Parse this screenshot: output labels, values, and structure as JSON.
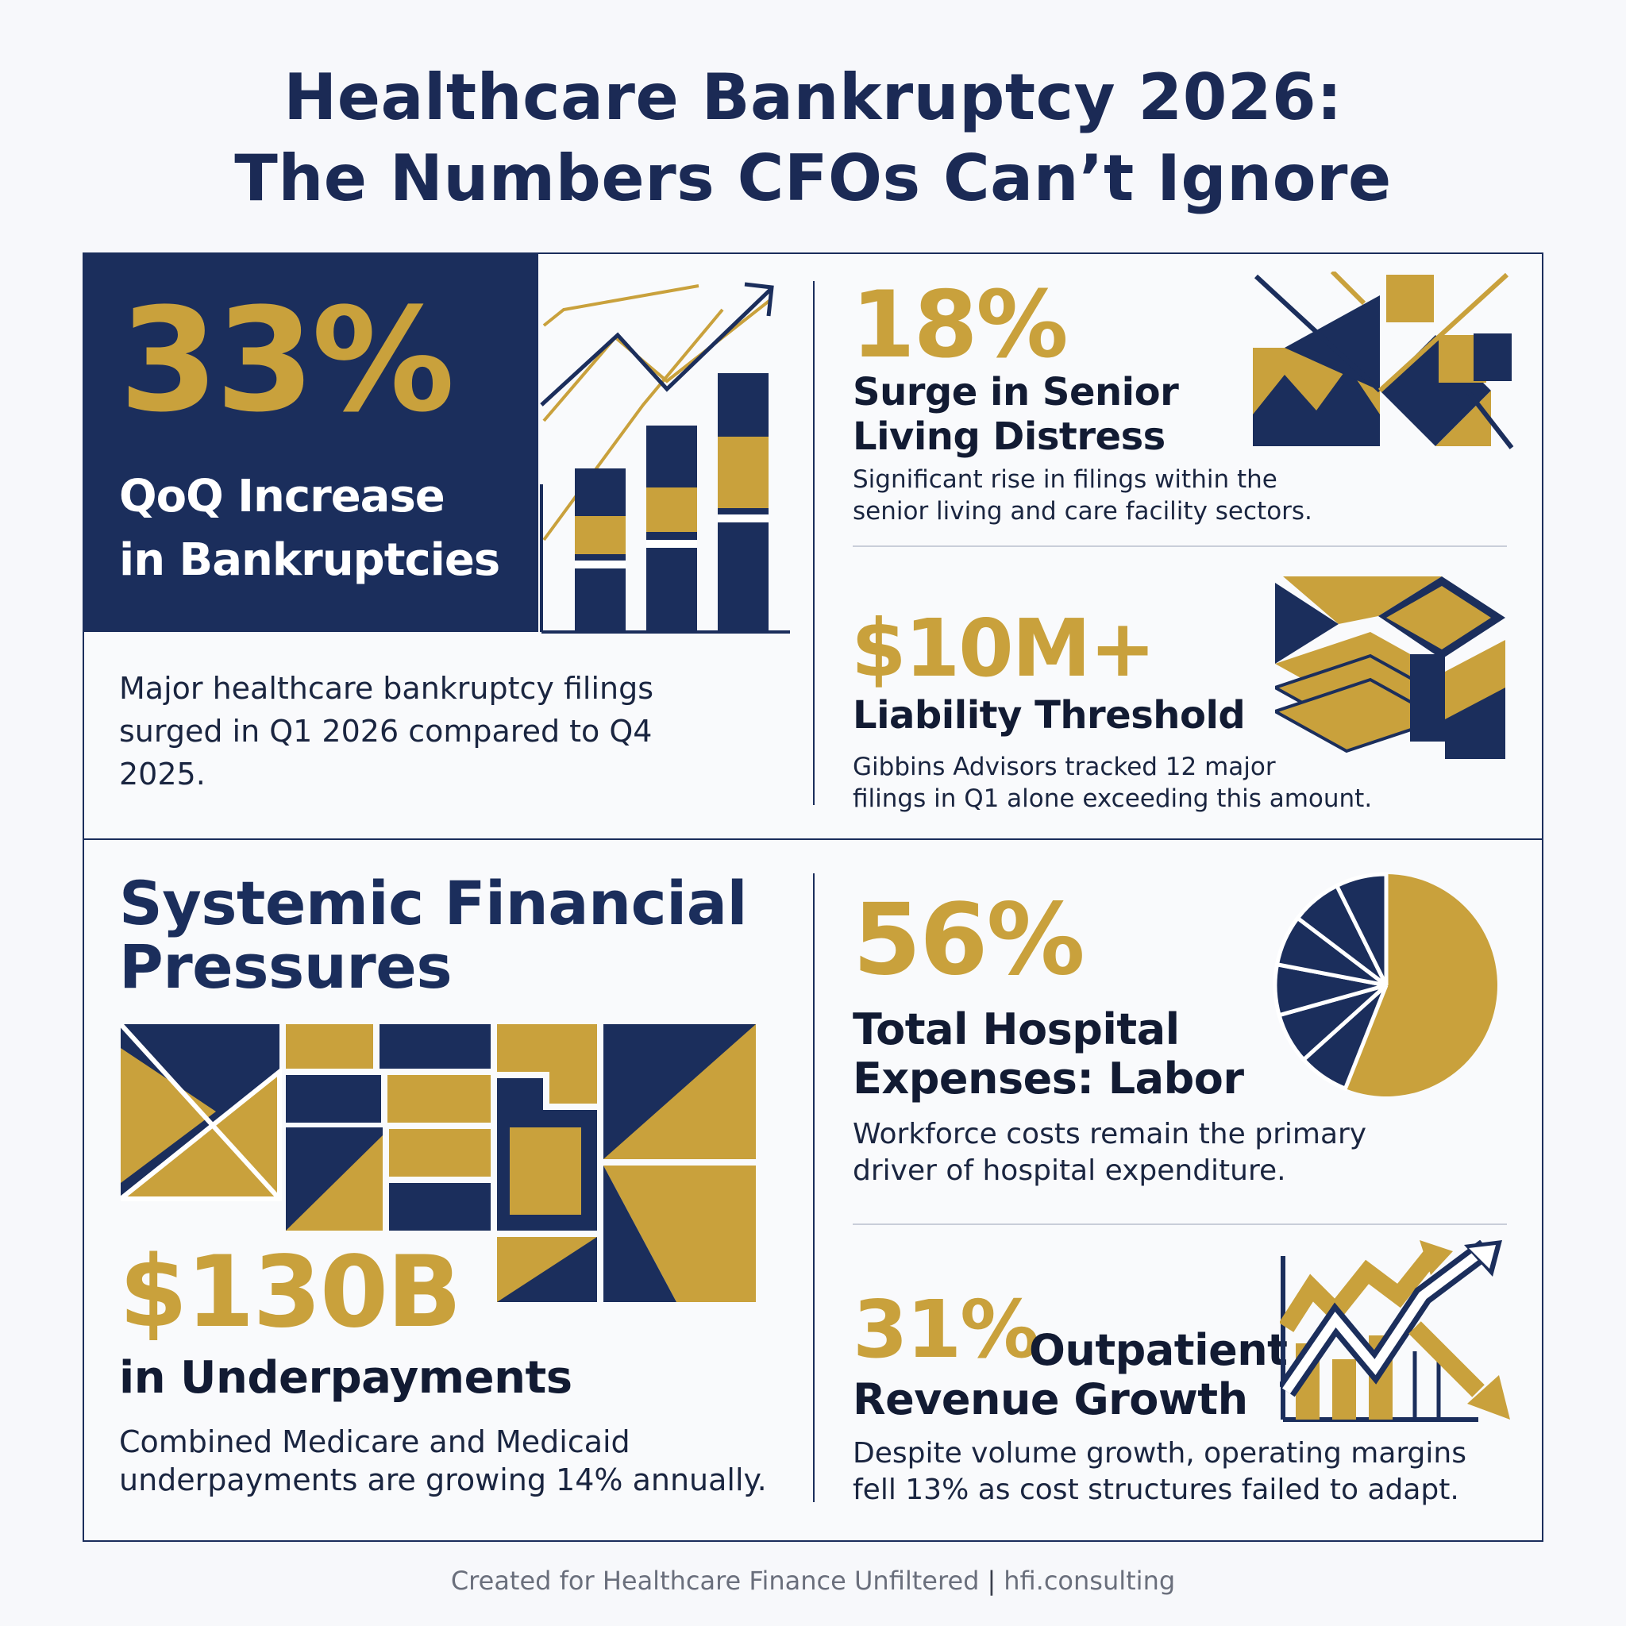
{
  "title": {
    "line1": "Healthcare Bankruptcy 2026:",
    "line2": "The Numbers CFOs Can’t Ignore"
  },
  "colors": {
    "navy": "#1b2e5c",
    "gold": "#c9a13c",
    "background": "#f7f8fb"
  },
  "icons": [
    "rising-bar-chart-icon",
    "geometric-tiles-icon",
    "stacked-layers-icon",
    "geometric-mosaic-icon",
    "pie-chart-icon",
    "up-down-arrows-icon"
  ],
  "stats": {
    "bankruptcies": {
      "value": "33%",
      "heading_line1": "QoQ Increase",
      "heading_line2": "in Bankruptcies",
      "body": "Major healthcare bankruptcy filings surged in Q1 2026 compared to Q4 2025."
    },
    "senior_living": {
      "value": "18%",
      "heading_line1": "Surge in Senior",
      "heading_line2": "Living Distress",
      "body_line1": "Significant rise in filings within the",
      "body_line2": "senior living and care facility sectors."
    },
    "liability": {
      "value": "$10M+",
      "heading": "Liability Threshold",
      "body_line1": "Gibbins Advisors tracked 12 major",
      "body_line2": "filings in Q1 alone exceeding this amount."
    },
    "systemic": {
      "heading_line1": "Systemic Financial",
      "heading_line2": "Pressures"
    },
    "underpayments": {
      "value": "$130B",
      "heading": "in Underpayments",
      "body_line1": "Combined Medicare and Medicaid",
      "body_line2": "underpayments are growing 14% annually."
    },
    "labor": {
      "value": "56%",
      "heading_line1": "Total Hospital",
      "heading_line2": "Expenses: Labor",
      "body_line1": "Workforce costs remain the primary",
      "body_line2": "driver of hospital expenditure.",
      "pie_fraction": 0.56
    },
    "outpatient": {
      "value": "31%",
      "heading_inline": "Outpatient",
      "heading_line2": "Revenue Growth",
      "body_line1": "Despite volume growth, operating margins",
      "body_line2": "fell 13% as cost structures failed to adapt."
    }
  },
  "footer": {
    "credit": "Created for Healthcare Finance Unfiltered",
    "separator": "|",
    "site": "hfi.consulting"
  }
}
